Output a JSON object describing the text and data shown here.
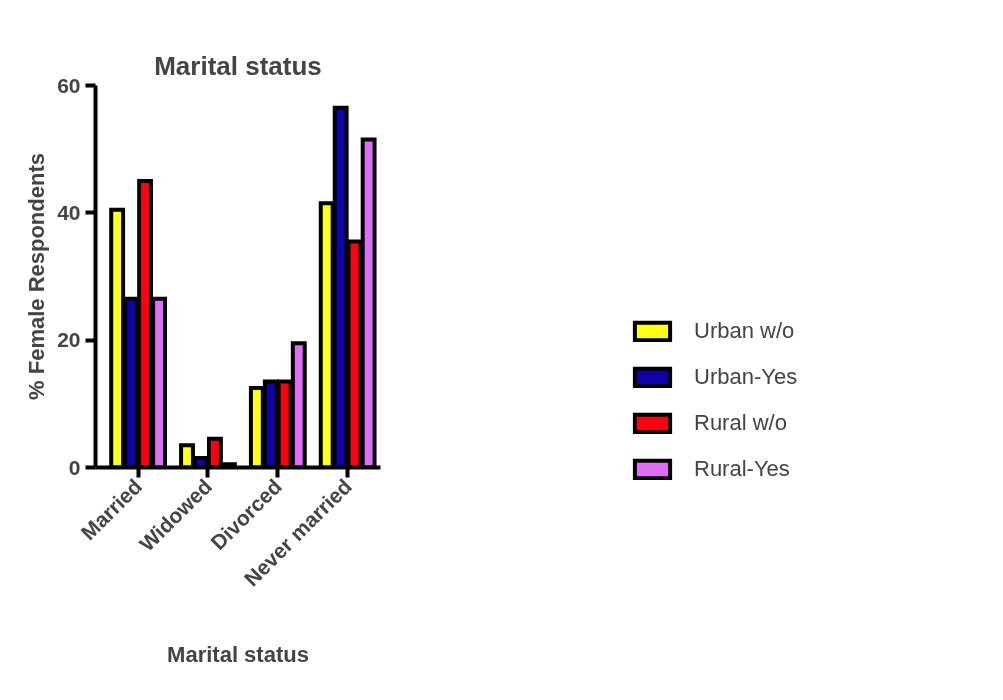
{
  "chart_data": {
    "type": "bar",
    "title": "Marital status",
    "xlabel": "Marital status",
    "ylabel": "% Female Respondents",
    "categories": [
      "Married",
      "Widowed",
      "Divorced",
      "Never married"
    ],
    "series": [
      {
        "name": "Urban w/o",
        "color": "#ffff1a",
        "values": [
          40.5,
          3.5,
          12.5,
          41.5
        ]
      },
      {
        "name": "Urban-Yes",
        "color": "#0f03a8",
        "values": [
          26.5,
          1.5,
          13.5,
          56.5
        ]
      },
      {
        "name": "Rural w/o",
        "color": "#ff0010",
        "values": [
          45,
          4.5,
          13.5,
          35.5
        ]
      },
      {
        "name": "Rural-Yes",
        "color": "#dd6ef5",
        "values": [
          26.5,
          0.5,
          19.5,
          51.5
        ]
      }
    ],
    "ylim": [
      0,
      60
    ],
    "yticks": [
      0,
      20,
      40,
      60
    ],
    "grid": false,
    "legend": "right"
  }
}
